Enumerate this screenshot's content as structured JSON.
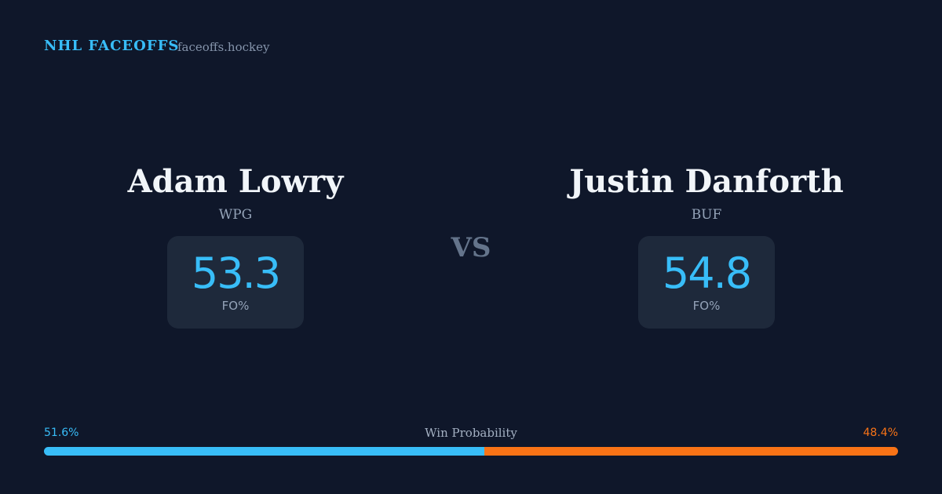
{
  "header": {
    "brand": "NHL FACEOFFS",
    "site": "faceoffs.hockey"
  },
  "players": [
    {
      "name": "Adam Lowry",
      "team": "WPG",
      "stat": 53.3,
      "stat_label": "FO%"
    },
    {
      "name": "Justin Danforth",
      "team": "BUF",
      "stat": 54.8,
      "stat_label": "FO%"
    }
  ],
  "vs": "VS",
  "win_probability": {
    "label": "Win Probability",
    "sides": [
      {
        "value": 51.6,
        "label": "51.6%",
        "color": "#38bdf8"
      },
      {
        "value": 48.4,
        "label": "48.4%",
        "color": "#f97316"
      }
    ]
  }
}
